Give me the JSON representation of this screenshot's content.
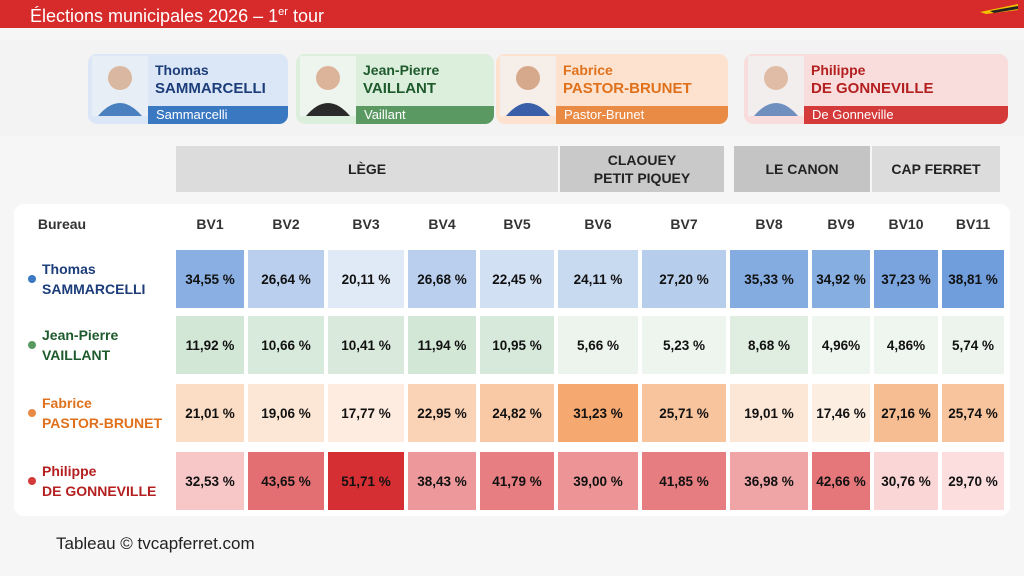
{
  "header": {
    "title": "Élections municipales 2026 – 1",
    "title_sup": "er",
    "title_tail": " tour"
  },
  "candidates": [
    {
      "first": "Thomas",
      "last": "SAMMARCELLI",
      "tag": "Sammarcelli",
      "color": "#3b78c2",
      "text": "#1c3d7a"
    },
    {
      "first": "Jean-Pierre",
      "last": "VAILLANT",
      "tag": "Vaillant",
      "color": "#5a9a62",
      "text": "#1e5a2c"
    },
    {
      "first": "Fabrice",
      "last": "PASTOR-BRUNET",
      "tag": "Pastor-Brunet",
      "color": "#e98a45",
      "text": "#e0711c"
    },
    {
      "first": "Philippe",
      "last": "DE GONNEVILLE",
      "tag": "De Gonneville",
      "color": "#d43a3a",
      "text": "#b42020"
    }
  ],
  "groups": [
    {
      "label": "LÈGE"
    },
    {
      "label": "CLAOUEY\nPETIT PIQUEY"
    },
    {
      "label": "LE CANON"
    },
    {
      "label": "CAP FERRET"
    }
  ],
  "chart_data": {
    "type": "table",
    "row_header": "Bureau",
    "categories": [
      "BV1",
      "BV2",
      "BV3",
      "BV4",
      "BV5",
      "BV6",
      "BV7",
      "BV8",
      "BV9",
      "BV10",
      "BV11"
    ],
    "series": [
      {
        "name": "Thomas SAMMARCELLI",
        "display": [
          "34,55 %",
          "26,64 %",
          "20,11 %",
          "26,68 %",
          "22,45 %",
          "24,11 %",
          "27,20 %",
          "35,33 %",
          "34,92 %",
          "37,23 %",
          "38,81 %"
        ],
        "values": [
          34.55,
          26.64,
          20.11,
          26.68,
          22.45,
          24.11,
          27.2,
          35.33,
          34.92,
          37.23,
          38.81
        ]
      },
      {
        "name": "Jean-Pierre VAILLANT",
        "display": [
          "11,92 %",
          "10,66 %",
          "10,41 %",
          "11,94 %",
          "10,95 %",
          "5,66 %",
          "5,23 %",
          "8,68 %",
          "4,96%",
          "4,86%",
          "5,74 %"
        ],
        "values": [
          11.92,
          10.66,
          10.41,
          11.94,
          10.95,
          5.66,
          5.23,
          8.68,
          4.96,
          4.86,
          5.74
        ]
      },
      {
        "name": "Fabrice PASTOR-BRUNET",
        "display": [
          "21,01 %",
          "19,06 %",
          "17,77 %",
          "22,95 %",
          "24,82 %",
          "31,23 %",
          "25,71 %",
          "19,01 %",
          "17,46 %",
          "27,16 %",
          "25,74 %"
        ],
        "values": [
          21.01,
          19.06,
          17.77,
          22.95,
          24.82,
          31.23,
          25.71,
          19.01,
          17.46,
          27.16,
          25.74
        ]
      },
      {
        "name": "Philippe DE GONNEVILLE",
        "display": [
          "32,53 %",
          "43,65 %",
          "51,71 %",
          "38,43 %",
          "41,79 %",
          "39,00 %",
          "41,85 %",
          "36,98 %",
          "42,66 %",
          "30,76 %",
          "29,70 %"
        ],
        "values": [
          32.53,
          43.65,
          51.71,
          38.43,
          41.79,
          39.0,
          41.85,
          36.98,
          42.66,
          30.76,
          29.7
        ]
      }
    ]
  },
  "footer": {
    "credit": "Tableau © tvcapferret.com"
  }
}
